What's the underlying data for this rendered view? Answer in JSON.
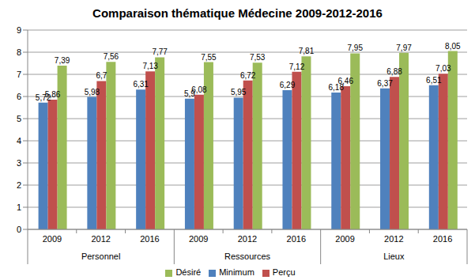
{
  "chart_data": {
    "type": "bar",
    "title": "Comparaison thématique Médecine 2009-2012-2016",
    "categories": [
      "2009",
      "2012",
      "2016",
      "2009",
      "2012",
      "2016",
      "2009",
      "2012",
      "2016"
    ],
    "category_groups": [
      "Personnel",
      "Ressources",
      "Lieux"
    ],
    "series": [
      {
        "name": "Minimum",
        "color": "#4f81bd",
        "values": [
          5.72,
          5.98,
          6.31,
          5.9,
          5.95,
          6.29,
          6.18,
          6.37,
          6.51
        ],
        "value_labels": [
          "5,72",
          "5,98",
          "6,31",
          "5,9",
          "5,95",
          "6,29",
          "6,18",
          "6,37",
          "6,51"
        ]
      },
      {
        "name": "Perçu",
        "color": "#c0504d",
        "values": [
          5.86,
          6.7,
          7.13,
          6.08,
          6.72,
          7.12,
          6.46,
          6.88,
          7.03
        ],
        "value_labels": [
          "5,86",
          "6,7",
          "7,13",
          "6,08",
          "6,72",
          "7,12",
          "6,46",
          "6,88",
          "7,03"
        ]
      },
      {
        "name": "Désiré",
        "color": "#9bbb59",
        "values": [
          7.39,
          7.56,
          7.77,
          7.55,
          7.53,
          7.81,
          7.95,
          7.97,
          8.05
        ],
        "value_labels": [
          "7,39",
          "7,56",
          "7,77",
          "7,55",
          "7,53",
          "7,81",
          "7,95",
          "7,97",
          "8,05"
        ]
      }
    ],
    "ylim": [
      0,
      9
    ],
    "yticks": [
      0,
      1,
      2,
      3,
      4,
      5,
      6,
      7,
      8,
      9
    ],
    "grid": true,
    "data_labels": true,
    "legend": "bottom"
  }
}
